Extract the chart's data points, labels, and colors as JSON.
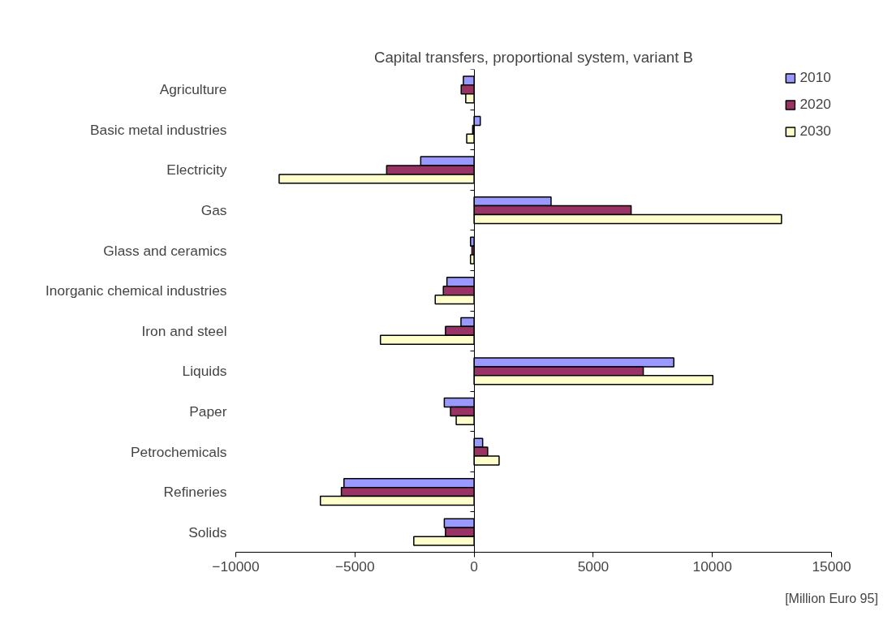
{
  "chart_data": {
    "type": "bar",
    "orientation": "horizontal",
    "title": "Capital transfers, proportional system, variant B",
    "xlabel": "[Million Euro 95]",
    "categories": [
      "Agriculture",
      "Basic metal industries",
      "Electricity",
      "Gas",
      "Glass and ceramics",
      "Inorganic chemical industries",
      "Iron and steel",
      "Liquids",
      "Paper",
      "Petrochemicals",
      "Refineries",
      "Solids"
    ],
    "series": [
      {
        "name": "2010",
        "color": "#9999ff",
        "values": [
          -450,
          260,
          -2240,
          3230,
          -150,
          -1140,
          -550,
          8380,
          -1250,
          360,
          -5460,
          -1250
        ]
      },
      {
        "name": "2020",
        "color": "#993366",
        "values": [
          -540,
          -60,
          -3670,
          6590,
          -90,
          -1290,
          -1200,
          7100,
          -990,
          570,
          -5570,
          -1200
        ]
      },
      {
        "name": "2030",
        "color": "#ffffcc",
        "values": [
          -350,
          -310,
          -8180,
          12900,
          -150,
          -1630,
          -3930,
          10020,
          -750,
          1050,
          -6450,
          -2530
        ]
      }
    ],
    "xlim": [
      -10000,
      15000
    ],
    "xticks": [
      -10000,
      -5000,
      0,
      5000,
      10000,
      15000
    ],
    "legend": "top right"
  }
}
